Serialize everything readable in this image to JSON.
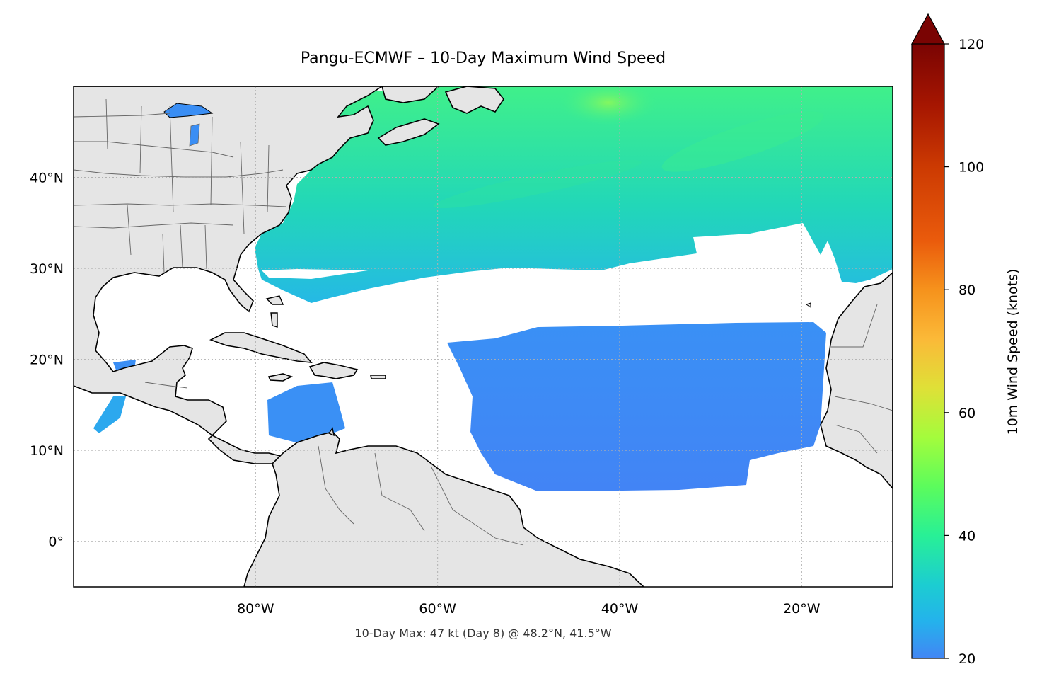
{
  "title": "Pangu-ECMWF – 10-Day Maximum Wind Speed",
  "footnote": "10-Day Max: 47 kt (Day 8) @ 48.2°N, 41.5°W",
  "map": {
    "extent": {
      "lon_min": -100,
      "lon_max": -10,
      "lat_min": -5,
      "lat_max": 50
    },
    "lat_ticks": [
      {
        "value": 40,
        "label": "40°N"
      },
      {
        "value": 30,
        "label": "30°N"
      },
      {
        "value": 20,
        "label": "20°N"
      },
      {
        "value": 10,
        "label": "10°N"
      },
      {
        "value": 0,
        "label": "0°"
      }
    ],
    "lon_ticks": [
      {
        "value": -80,
        "label": "80°W"
      },
      {
        "value": -60,
        "label": "60°W"
      },
      {
        "value": -40,
        "label": "40°W"
      },
      {
        "value": -20,
        "label": "20°W"
      }
    ],
    "land_color": "#e5e5e5",
    "coast_color": "#000000",
    "border_color": "#666666",
    "gridlines": "dotted"
  },
  "colorbar": {
    "label": "10m Wind Speed (knots)",
    "min": 20,
    "max": 120,
    "ticks": [
      {
        "value": 20,
        "label": "20"
      },
      {
        "value": 40,
        "label": "40"
      },
      {
        "value": 60,
        "label": "60"
      },
      {
        "value": 80,
        "label": "80"
      },
      {
        "value": 100,
        "label": "100"
      },
      {
        "value": 120,
        "label": "120"
      }
    ],
    "extend": "max",
    "colors": [
      {
        "value": 20,
        "color": "#4286f4"
      },
      {
        "value": 26,
        "color": "#24b2ec"
      },
      {
        "value": 32,
        "color": "#1ccdd1"
      },
      {
        "value": 40,
        "color": "#28f096"
      },
      {
        "value": 48,
        "color": "#5cfc5c"
      },
      {
        "value": 56,
        "color": "#a4fc3c"
      },
      {
        "value": 64,
        "color": "#dfe037"
      },
      {
        "value": 72,
        "color": "#fbb938"
      },
      {
        "value": 80,
        "color": "#f6921c"
      },
      {
        "value": 88,
        "color": "#ea5b0c"
      },
      {
        "value": 100,
        "color": "#cc3a02"
      },
      {
        "value": 110,
        "color": "#a61601"
      },
      {
        "value": 120,
        "color": "#7a0403"
      }
    ],
    "extend_color": "#7a0403"
  },
  "wind_field": {
    "threshold_kt": 20,
    "max_kt": 47,
    "max_day": 8,
    "max_lat": 48.2,
    "max_lon": -41.5
  }
}
